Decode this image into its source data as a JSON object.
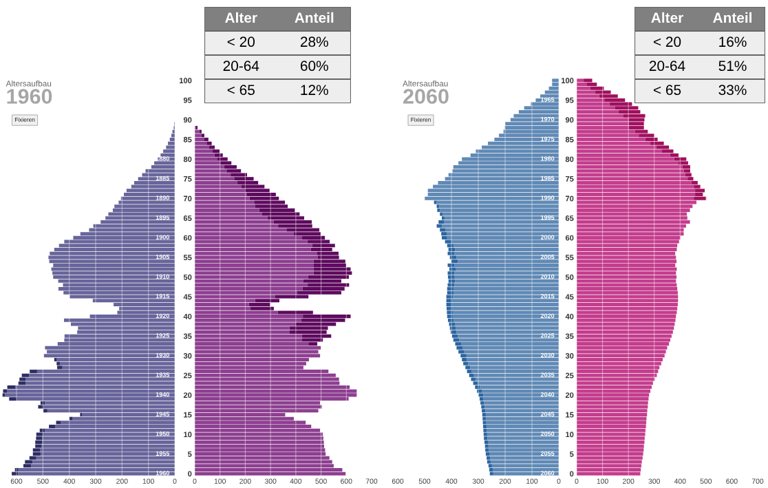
{
  "chart_data": [
    {
      "type": "bar",
      "orientation": "horizontal",
      "stacked": true,
      "subtitle": "Altersaufbau",
      "title": "1960",
      "grid": "x",
      "tick_labels": "x",
      "categories": [
        "100",
        null,
        null,
        null,
        null,
        "95",
        null,
        null,
        null,
        null,
        "90",
        null,
        null,
        null,
        null,
        "85",
        null,
        null,
        null,
        null,
        "80",
        null,
        null,
        null,
        null,
        "75",
        null,
        null,
        null,
        null,
        "70",
        null,
        null,
        null,
        null,
        "65",
        null,
        null,
        null,
        null,
        "60",
        null,
        null,
        null,
        null,
        "55",
        null,
        null,
        null,
        null,
        "50",
        null,
        null,
        null,
        null,
        "45",
        null,
        null,
        null,
        null,
        "40",
        null,
        null,
        null,
        null,
        "35",
        null,
        null,
        null,
        null,
        "30",
        null,
        null,
        null,
        null,
        "25",
        null,
        null,
        null,
        null,
        "20",
        null,
        null,
        null,
        null,
        "15",
        null,
        null,
        null,
        null,
        "10",
        null,
        null,
        null,
        null,
        "5",
        null,
        null,
        null,
        null,
        "0"
      ],
      "xlim": [
        660,
        0
      ],
      "xticks": [
        600,
        500,
        400,
        300,
        200,
        100,
        0
      ],
      "series": [
        {
          "color": "#67659a",
          "values": [
            0,
            0,
            0,
            0,
            0,
            0,
            0,
            0,
            0,
            0,
            0,
            2,
            4,
            9,
            13,
            19,
            26,
            33,
            44,
            54,
            67,
            78,
            89,
            111,
            124,
            139,
            154,
            165,
            183,
            193,
            204,
            213,
            229,
            235,
            252,
            263,
            281,
            309,
            325,
            358,
            385,
            419,
            439,
            457,
            474,
            479,
            476,
            461,
            468,
            464,
            461,
            442,
            424,
            441,
            422,
            398,
            311,
            232,
            211,
            218,
            322,
            420,
            394,
            367,
            370,
            418,
            419,
            444,
            492,
            485,
            496,
            447,
            435,
            426,
            522,
            552,
            566,
            565,
            605,
            635,
            644,
            600,
            492,
            498,
            483,
            352,
            387,
            433,
            454,
            492,
            501,
            502,
            503,
            506,
            511,
            509,
            525,
            539,
            544,
            593,
            594
          ]
        },
        {
          "color": "#2e2d63",
          "values": [
            0,
            0,
            0,
            0,
            0,
            0,
            0,
            0,
            0,
            0,
            0,
            0,
            0,
            0,
            0,
            0,
            0,
            0,
            0,
            0,
            0,
            0,
            0,
            0,
            0,
            0,
            0,
            0,
            0,
            0,
            0,
            0,
            0,
            0,
            0,
            0,
            0,
            0,
            0,
            0,
            0,
            0,
            0,
            0,
            0,
            0,
            0,
            0,
            0,
            0,
            0,
            0,
            0,
            0,
            0,
            0,
            0,
            0,
            0,
            0,
            0,
            0,
            0,
            0,
            0,
            0,
            0,
            0,
            0,
            0,
            0,
            10,
            13,
            20,
            28,
            28,
            23,
            28,
            30,
            16,
            9,
            28,
            17,
            20,
            15,
            7,
            13,
            17,
            23,
            20,
            24,
            24,
            26,
            23,
            27,
            29,
            26,
            29,
            30,
            13,
            24
          ]
        }
      ],
      "annotations": [
        "Fixieren",
        {
          "text": "1880",
          "y": "80"
        },
        {
          "text": "1885",
          "y": "75"
        },
        {
          "text": "1890",
          "y": "70"
        },
        {
          "text": "1895",
          "y": "65"
        },
        {
          "text": "1900",
          "y": "60"
        },
        {
          "text": "1905",
          "y": "55"
        },
        {
          "text": "1910",
          "y": "50"
        },
        {
          "text": "1915",
          "y": "45"
        },
        {
          "text": "1920",
          "y": "40"
        },
        {
          "text": "1925",
          "y": "35"
        },
        {
          "text": "1930",
          "y": "30"
        },
        {
          "text": "1935",
          "y": "25"
        },
        {
          "text": "1940",
          "y": "20"
        },
        {
          "text": "1945",
          "y": "15"
        },
        {
          "text": "1950",
          "y": "10"
        },
        {
          "text": "1955",
          "y": "5"
        },
        {
          "text": "1960",
          "y": "0"
        }
      ]
    },
    {
      "type": "bar",
      "orientation": "horizontal",
      "stacked": true,
      "grid": "x",
      "categories": [
        "100",
        null,
        null,
        null,
        null,
        "95",
        null,
        null,
        null,
        null,
        "90",
        null,
        null,
        null,
        null,
        "85",
        null,
        null,
        null,
        null,
        "80",
        null,
        null,
        null,
        null,
        "75",
        null,
        null,
        null,
        null,
        "70",
        null,
        null,
        null,
        null,
        "65",
        null,
        null,
        null,
        null,
        "60",
        null,
        null,
        null,
        null,
        "55",
        null,
        null,
        null,
        null,
        "50",
        null,
        null,
        null,
        null,
        "45",
        null,
        null,
        null,
        null,
        "40",
        null,
        null,
        null,
        null,
        "35",
        null,
        null,
        null,
        null,
        "30",
        null,
        null,
        null,
        null,
        "25",
        null,
        null,
        null,
        null,
        "20",
        null,
        null,
        null,
        null,
        "15",
        null,
        null,
        null,
        null,
        "10",
        null,
        null,
        null,
        null,
        "5",
        null,
        null,
        null,
        null,
        "0"
      ],
      "xlim": [
        0,
        700
      ],
      "xticks": [
        0,
        100,
        200,
        300,
        400,
        500,
        600,
        700
      ],
      "series": [
        {
          "color": "#8d3f90",
          "values": [
            0,
            0,
            0,
            0,
            0,
            0,
            0,
            0,
            0,
            0,
            0,
            0,
            4,
            18,
            27,
            38,
            47,
            57,
            69,
            78,
            90,
            101,
            116,
            126,
            142,
            156,
            168,
            185,
            197,
            207,
            217,
            235,
            238,
            255,
            267,
            288,
            313,
            330,
            363,
            392,
            425,
            446,
            465,
            459,
            483,
            486,
            470,
            471,
            470,
            470,
            449,
            430,
            447,
            427,
            406,
            317,
            239,
            214,
            220,
            329,
            428,
            421,
            400,
            375,
            374,
            424,
            425,
            450,
            499,
            489,
            496,
            452,
            441,
            430,
            529,
            558,
            571,
            573,
            613,
            641,
            641,
            609,
            496,
            503,
            489,
            358,
            392,
            439,
            461,
            496,
            507,
            509,
            511,
            512,
            516,
            518,
            533,
            544,
            550,
            584,
            597
          ]
        },
        {
          "color": "#5e0a5e",
          "values": [
            0,
            0,
            0,
            0,
            0,
            0,
            0,
            0,
            0,
            0,
            0,
            0,
            7,
            9,
            11,
            16,
            20,
            22,
            29,
            33,
            40,
            44,
            50,
            57,
            65,
            77,
            83,
            91,
            99,
            114,
            116,
            122,
            130,
            141,
            148,
            145,
            150,
            135,
            130,
            106,
            90,
            88,
            90,
            85,
            86,
            85,
            126,
            128,
            147,
            152,
            161,
            150,
            164,
            166,
            174,
            133,
            96,
            84,
            93,
            139,
            189,
            174,
            159,
            152,
            148,
            116,
            82,
            35,
            0,
            0,
            0,
            0,
            0,
            0,
            0,
            0,
            0,
            0,
            0,
            0,
            0,
            0,
            0,
            0,
            0,
            0,
            0,
            0,
            0,
            0,
            0,
            0,
            0,
            0,
            0,
            0,
            0,
            0,
            0,
            0,
            0
          ]
        }
      ]
    },
    {
      "type": "other",
      "categories": [
        "< 20",
        "20-64",
        "< 65"
      ],
      "values": [
        28,
        60,
        12
      ],
      "value_labels": [
        "28%",
        "60%",
        "12%"
      ],
      "annotations": [
        "Alter",
        "Anteil"
      ]
    },
    {
      "type": "bar",
      "orientation": "horizontal",
      "stacked": true,
      "subtitle": "Altersaufbau",
      "title": "2060",
      "grid": "x",
      "tick_labels": "x",
      "categories": [
        "100",
        null,
        null,
        null,
        null,
        "95",
        null,
        null,
        null,
        null,
        "90",
        null,
        null,
        null,
        null,
        "85",
        null,
        null,
        null,
        null,
        "80",
        null,
        null,
        null,
        null,
        "75",
        null,
        null,
        null,
        null,
        "70",
        null,
        null,
        null,
        null,
        "65",
        null,
        null,
        null,
        null,
        "60",
        null,
        null,
        null,
        null,
        "55",
        null,
        null,
        null,
        null,
        "50",
        null,
        null,
        null,
        null,
        "45",
        null,
        null,
        null,
        null,
        "40",
        null,
        null,
        null,
        null,
        "35",
        null,
        null,
        null,
        null,
        "30",
        null,
        null,
        null,
        null,
        "25",
        null,
        null,
        null,
        null,
        "20",
        null,
        null,
        null,
        null,
        "15",
        null,
        null,
        null,
        null,
        "10",
        null,
        null,
        null,
        null,
        "5",
        null,
        null,
        null,
        null,
        "0"
      ],
      "xlim": [
        600,
        0
      ],
      "xticks": [
        600,
        500,
        400,
        300,
        200,
        100,
        0
      ],
      "series": [
        {
          "color": "#6089b5",
          "values": [
            25,
            25,
            37,
            52,
            69,
            86,
            104,
            129,
            149,
            168,
            180,
            200,
            201,
            206,
            223,
            240,
            264,
            287,
            309,
            329,
            361,
            374,
            393,
            396,
            411,
            424,
            450,
            469,
            488,
            488,
            500,
            455,
            445,
            443,
            433,
            426,
            428,
            435,
            423,
            418,
            416,
            399,
            391,
            386,
            389,
            381,
            376,
            389,
            383,
            389,
            388,
            386,
            389,
            391,
            391,
            394,
            397,
            397,
            396,
            395,
            394,
            391,
            387,
            384,
            381,
            376,
            371,
            364,
            359,
            352,
            344,
            343,
            338,
            330,
            324,
            316,
            309,
            301,
            294,
            287,
            281,
            282,
            279,
            276,
            274,
            272,
            271,
            270,
            269,
            268,
            267,
            266,
            264,
            262,
            261,
            259,
            256,
            254,
            249,
            246,
            244
          ]
        },
        {
          "color": "#2d65a0",
          "values": [
            0,
            0,
            0,
            0,
            0,
            0,
            0,
            0,
            0,
            0,
            0,
            0,
            0,
            0,
            0,
            0,
            0,
            0,
            0,
            0,
            0,
            0,
            0,
            0,
            0,
            0,
            0,
            0,
            0,
            0,
            0,
            10,
            10,
            10,
            10,
            10,
            20,
            20,
            20,
            20,
            20,
            25,
            25,
            25,
            25,
            25,
            25,
            25,
            25,
            25,
            25,
            25,
            25,
            25,
            25,
            25,
            22,
            22,
            22,
            22,
            22,
            22,
            22,
            22,
            22,
            22,
            22,
            22,
            22,
            22,
            22,
            18,
            18,
            18,
            18,
            18,
            18,
            18,
            18,
            18,
            18,
            13,
            13,
            13,
            13,
            13,
            13,
            13,
            13,
            13,
            13,
            13,
            13,
            13,
            13,
            13,
            13,
            13,
            13,
            13,
            13
          ]
        }
      ],
      "annotations": [
        "Fixieren",
        {
          "text": "1965",
          "y": "95"
        },
        {
          "text": "1970",
          "y": "90"
        },
        {
          "text": "1975",
          "y": "85"
        },
        {
          "text": "1980",
          "y": "80"
        },
        {
          "text": "1985",
          "y": "75"
        },
        {
          "text": "1990",
          "y": "70"
        },
        {
          "text": "1995",
          "y": "65"
        },
        {
          "text": "2000",
          "y": "60"
        },
        {
          "text": "2005",
          "y": "55"
        },
        {
          "text": "2010",
          "y": "50"
        },
        {
          "text": "2015",
          "y": "45"
        },
        {
          "text": "2020",
          "y": "40"
        },
        {
          "text": "2025",
          "y": "35"
        },
        {
          "text": "2030",
          "y": "30"
        },
        {
          "text": "2035",
          "y": "25"
        },
        {
          "text": "2040",
          "y": "20"
        },
        {
          "text": "2045",
          "y": "15"
        },
        {
          "text": "2050",
          "y": "10"
        },
        {
          "text": "2055",
          "y": "5"
        },
        {
          "text": "2060",
          "y": "0"
        }
      ]
    },
    {
      "type": "bar",
      "orientation": "horizontal",
      "stacked": true,
      "grid": "x",
      "categories": [
        "100",
        null,
        null,
        null,
        null,
        "95",
        null,
        null,
        null,
        null,
        "90",
        null,
        null,
        null,
        null,
        "85",
        null,
        null,
        null,
        null,
        "80",
        null,
        null,
        null,
        null,
        "75",
        null,
        null,
        null,
        null,
        "70",
        null,
        null,
        null,
        null,
        "65",
        null,
        null,
        null,
        null,
        "60",
        null,
        null,
        null,
        null,
        "55",
        null,
        null,
        null,
        null,
        "50",
        null,
        null,
        null,
        null,
        "45",
        null,
        null,
        null,
        null,
        "40",
        null,
        null,
        null,
        null,
        "35",
        null,
        null,
        null,
        null,
        "30",
        null,
        null,
        null,
        null,
        "25",
        null,
        null,
        null,
        null,
        "20",
        null,
        null,
        null,
        null,
        "15",
        null,
        null,
        null,
        null,
        "10",
        null,
        null,
        null,
        null,
        "5",
        null,
        null,
        null,
        null,
        "0"
      ],
      "xlim": [
        0,
        700
      ],
      "xticks": [
        0,
        100,
        200,
        300,
        400,
        500,
        600,
        700
      ],
      "series": [
        {
          "color": "#c43d8d",
          "values": [
            27,
            38,
            52,
            72,
            87,
            107,
            127,
            149,
            162,
            181,
            201,
            201,
            201,
            226,
            240,
            265,
            285,
            308,
            330,
            361,
            377,
            394,
            409,
            414,
            419,
            429,
            444,
            453,
            458,
            458,
            453,
            463,
            448,
            438,
            426,
            428,
            438,
            423,
            414,
            414,
            401,
            396,
            389,
            387,
            381,
            384,
            386,
            381,
            387,
            384,
            386,
            384,
            387,
            389,
            391,
            392,
            392,
            391,
            389,
            387,
            384,
            382,
            379,
            376,
            372,
            367,
            362,
            357,
            350,
            345,
            340,
            333,
            327,
            320,
            315,
            310,
            302,
            295,
            290,
            285,
            280,
            278,
            276,
            275,
            273,
            272,
            270,
            269,
            268,
            266,
            265,
            263,
            262,
            260,
            259,
            257,
            255,
            252,
            250,
            248,
            246
          ]
        },
        {
          "color": "#a0105e",
          "values": [
            33,
            40,
            53,
            60,
            72,
            80,
            87,
            89,
            84,
            84,
            61,
            59,
            59,
            49,
            60,
            48,
            52,
            49,
            44,
            33,
            47,
            37,
            30,
            25,
            25,
            22,
            24,
            25,
            37,
            30,
            48,
            0,
            0,
            0,
            0,
            0,
            0,
            0,
            0,
            0,
            0,
            0,
            0,
            0,
            0,
            0,
            0,
            0,
            0,
            0,
            0,
            0,
            0,
            0,
            0,
            0,
            0,
            0,
            0,
            0,
            0,
            0,
            0,
            0,
            0,
            0,
            0,
            0,
            0,
            0,
            0,
            0,
            0,
            0,
            0,
            0,
            0,
            0,
            0,
            0,
            0,
            0,
            0,
            0,
            0,
            0,
            0,
            0,
            0,
            0,
            0,
            0,
            0,
            0,
            0,
            0,
            0,
            0,
            0,
            0,
            0
          ]
        }
      ]
    },
    {
      "type": "other",
      "categories": [
        "< 20",
        "20-64",
        "< 65"
      ],
      "values": [
        16,
        51,
        33
      ],
      "value_labels": [
        "16%",
        "51%",
        "33%"
      ],
      "annotations": [
        "Alter",
        "Anteil"
      ]
    }
  ]
}
